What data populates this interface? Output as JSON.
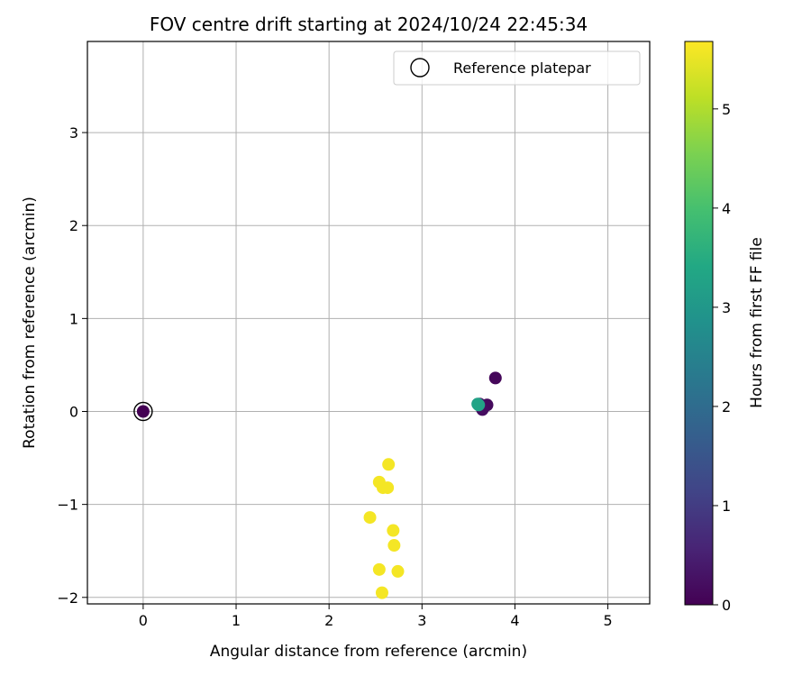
{
  "chart_data": {
    "type": "scatter",
    "title": "FOV centre drift starting at 2024/10/24 22:45:34",
    "xlabel": "Angular distance from reference (arcmin)",
    "ylabel": "Rotation from reference (arcmin)",
    "xlim": [
      -0.6,
      5.45
    ],
    "ylim": [
      -2.07,
      3.98
    ],
    "xticks": [
      0,
      1,
      2,
      3,
      4,
      5
    ],
    "yticks": [
      -2,
      -1,
      0,
      1,
      2,
      3
    ],
    "xtick_labels": [
      "0",
      "1",
      "2",
      "3",
      "4",
      "5"
    ],
    "ytick_labels": [
      "−2",
      "−1",
      "0",
      "1",
      "2",
      "3"
    ],
    "grid": true,
    "legend_position": "top-right",
    "colormap": "viridis",
    "colorbar": {
      "label": "Hours from first FF file",
      "range": [
        0,
        5.68
      ],
      "ticks": [
        0,
        1,
        2,
        3,
        4,
        5
      ],
      "tick_labels": [
        "0",
        "1",
        "2",
        "3",
        "4",
        "5"
      ]
    },
    "reference": {
      "name": "Reference platepar",
      "x": 0,
      "y": 0,
      "marker": "open-circle",
      "edge_color": "#000000"
    },
    "points": [
      {
        "x": 0.0,
        "y": 0.0,
        "hours": 0.0
      },
      {
        "x": 3.79,
        "y": 0.36,
        "hours": 0.1
      },
      {
        "x": 3.7,
        "y": 0.07,
        "hours": 0.15
      },
      {
        "x": 3.65,
        "y": 0.02,
        "hours": 0.2
      },
      {
        "x": 3.62,
        "y": 0.08,
        "hours": 0.25
      },
      {
        "x": 3.6,
        "y": 0.08,
        "hours": 3.2
      },
      {
        "x": 3.61,
        "y": 0.07,
        "hours": 3.3
      },
      {
        "x": 2.64,
        "y": -0.57,
        "hours": 5.6
      },
      {
        "x": 2.54,
        "y": -0.76,
        "hours": 5.6
      },
      {
        "x": 2.58,
        "y": -0.82,
        "hours": 5.6
      },
      {
        "x": 2.63,
        "y": -0.82,
        "hours": 5.6
      },
      {
        "x": 2.44,
        "y": -1.14,
        "hours": 5.6
      },
      {
        "x": 2.69,
        "y": -1.28,
        "hours": 5.6
      },
      {
        "x": 2.7,
        "y": -1.44,
        "hours": 5.6
      },
      {
        "x": 2.54,
        "y": -1.7,
        "hours": 5.6
      },
      {
        "x": 2.74,
        "y": -1.72,
        "hours": 5.6
      },
      {
        "x": 2.57,
        "y": -1.95,
        "hours": 5.6
      }
    ]
  }
}
